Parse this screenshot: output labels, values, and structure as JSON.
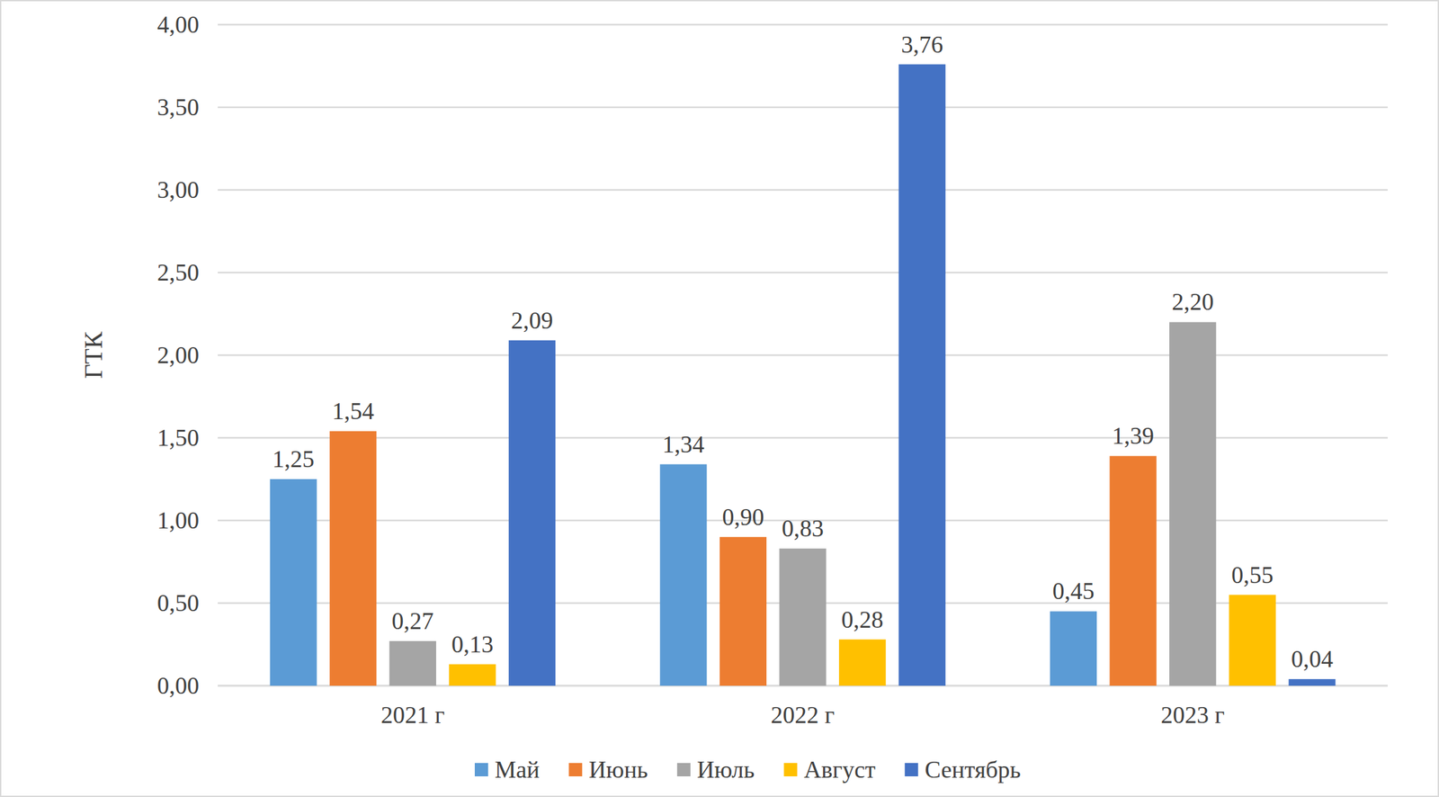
{
  "chart_data": {
    "type": "bar",
    "y_label": "ГТК",
    "categories": [
      "2021 г",
      "2022 г",
      "2023 г"
    ],
    "series": [
      {
        "name": "Май",
        "color": "#5b9bd5",
        "values": [
          1.25,
          1.34,
          0.45
        ],
        "value_labels": [
          "1,25",
          "1,34",
          "0,45"
        ]
      },
      {
        "name": "Июнь",
        "color": "#ed7d31",
        "values": [
          1.54,
          0.9,
          1.39
        ],
        "value_labels": [
          "1,54",
          "0,90",
          "1,39"
        ]
      },
      {
        "name": "Июль",
        "color": "#a5a5a5",
        "values": [
          0.27,
          0.83,
          2.2
        ],
        "value_labels": [
          "0,27",
          "0,83",
          "2,20"
        ]
      },
      {
        "name": "Август",
        "color": "#ffc000",
        "values": [
          0.13,
          0.28,
          0.55
        ],
        "value_labels": [
          "0,13",
          "0,28",
          "0,55"
        ]
      },
      {
        "name": "Сентябрь",
        "color": "#4472c4",
        "values": [
          2.09,
          3.76,
          0.04
        ],
        "value_labels": [
          "2,09",
          "3,76",
          "0,04"
        ]
      }
    ],
    "ylim": [
      0,
      4
    ],
    "yticks": [
      {
        "value": 0,
        "label": "0,00"
      },
      {
        "value": 0.5,
        "label": "0,50"
      },
      {
        "value": 1,
        "label": "1,00"
      },
      {
        "value": 1.5,
        "label": "1,50"
      },
      {
        "value": 2,
        "label": "2,00"
      },
      {
        "value": 2.5,
        "label": "2,50"
      },
      {
        "value": 3,
        "label": "3,00"
      },
      {
        "value": 3.5,
        "label": "3,50"
      },
      {
        "value": 4,
        "label": "4,00"
      }
    ],
    "grid": true,
    "legend": "bottom",
    "data_labels": true
  }
}
